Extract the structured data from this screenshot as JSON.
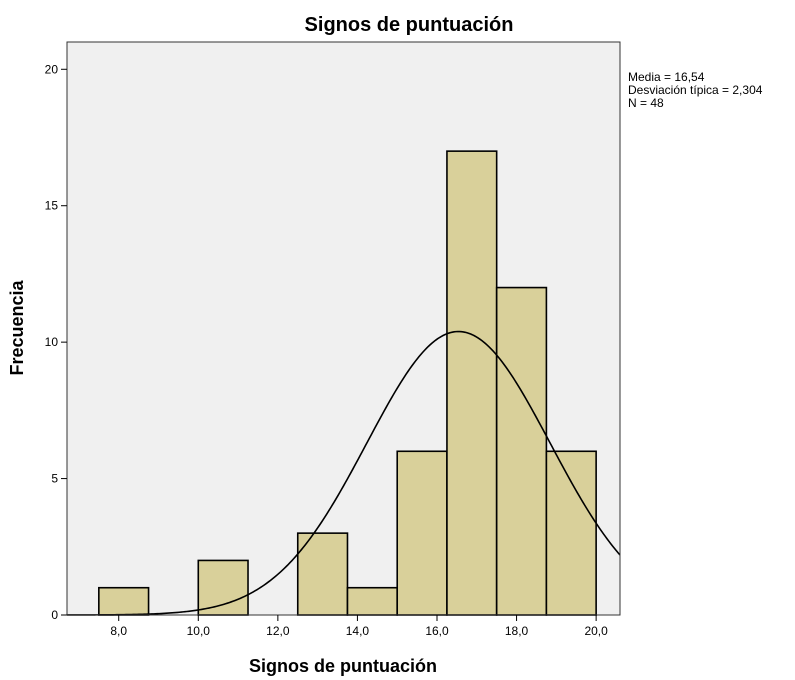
{
  "chart_data": {
    "type": "bar",
    "title": "Signos de puntuación",
    "xlabel": "Signos de puntuación",
    "ylabel": "Frecuencia",
    "xlim": [
      6.7,
      20.6
    ],
    "ylim": [
      0,
      21
    ],
    "x_ticks": [
      8,
      10,
      12,
      14,
      16,
      18,
      20
    ],
    "x_tick_labels": [
      "8,0",
      "10,0",
      "12,0",
      "14,0",
      "16,0",
      "18,0",
      "20,0"
    ],
    "y_ticks": [
      0,
      5,
      10,
      15,
      20
    ],
    "y_tick_labels": [
      "0",
      "5",
      "10",
      "15",
      "20"
    ],
    "bin_width": 1.25,
    "bins": [
      {
        "start": 7.5,
        "end": 8.75,
        "value": 1
      },
      {
        "start": 8.75,
        "end": 10.0,
        "value": 0
      },
      {
        "start": 10.0,
        "end": 11.25,
        "value": 2
      },
      {
        "start": 11.25,
        "end": 12.5,
        "value": 0
      },
      {
        "start": 12.5,
        "end": 13.75,
        "value": 3
      },
      {
        "start": 13.75,
        "end": 15.0,
        "value": 1
      },
      {
        "start": 15.0,
        "end": 16.25,
        "value": 6
      },
      {
        "start": 16.25,
        "end": 17.5,
        "value": 17
      },
      {
        "start": 17.5,
        "end": 18.75,
        "value": 12
      },
      {
        "start": 18.75,
        "end": 20.0,
        "value": 6
      }
    ],
    "normal_curve": {
      "mean": 16.54,
      "sd": 2.304,
      "n": 48
    },
    "stats_lines": [
      "Media = 16,54",
      "Desviación típica = 2,304",
      "N = 48"
    ],
    "colors": {
      "bar_fill": "#d9d09a",
      "bar_stroke": "#000000",
      "plot_bg": "#f0f0f0",
      "curve": "#000000"
    },
    "grid": false,
    "legend": "none"
  }
}
